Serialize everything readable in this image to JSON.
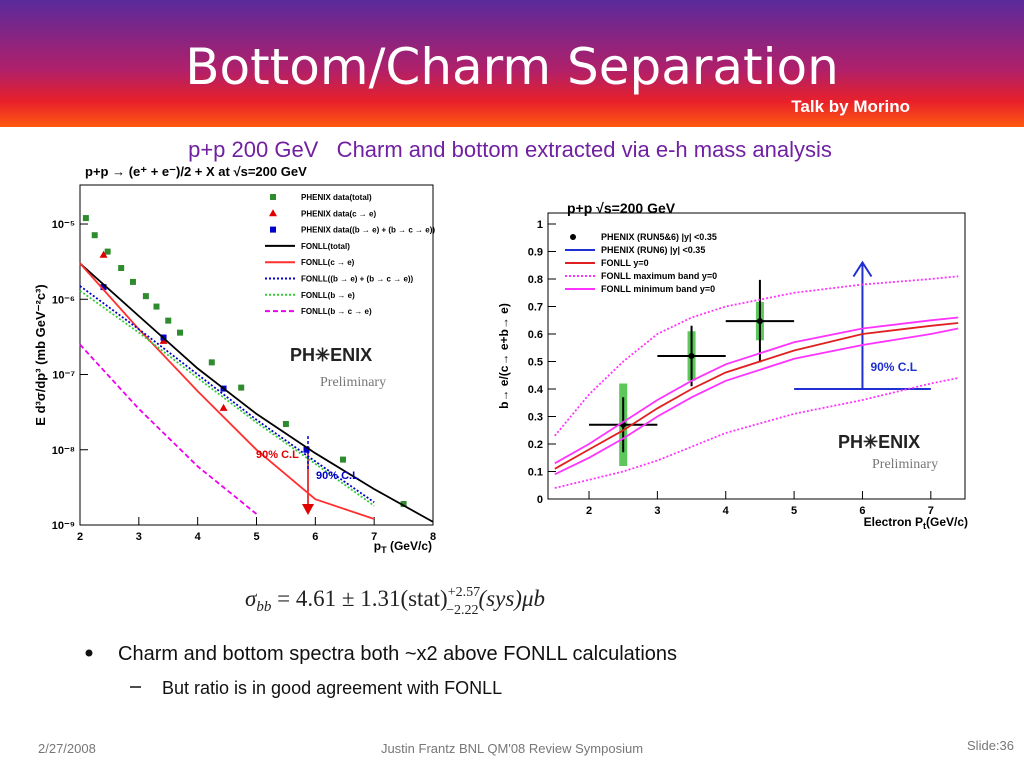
{
  "header": {
    "title": "Bottom/Charm Separation",
    "credit": "Talk by Morino"
  },
  "subtitle": "p+p 200 GeV   Charm and bottom extracted via e-h mass analysis",
  "chart_data": [
    {
      "type": "scatter",
      "title": "p+p → (e⁺ + e⁻)/2 + X at √s=200 GeV",
      "xlabel": "p",
      "xlabel_sub": "T",
      "xlabel_tail": " (GeV/c)",
      "ylabel": "E d³σ/dp³ (mb GeV⁻²c³)",
      "xlim": [
        2,
        8
      ],
      "xticks": [
        2,
        3,
        4,
        5,
        6,
        7,
        8
      ],
      "ylim": [
        1e-09,
        3.3e-05
      ],
      "log_y": true,
      "yticks": [
        {
          "value": 1e-09,
          "label": "10⁻⁹"
        },
        {
          "value": 1e-08,
          "label": "10⁻⁸"
        },
        {
          "value": 1e-07,
          "label": "10⁻⁷"
        },
        {
          "value": 1e-06,
          "label": "10⁻⁶"
        },
        {
          "value": 1e-05,
          "label": "10⁻⁵"
        }
      ],
      "legend": "top-right",
      "series": [
        {
          "name": "PHENIX data(total)",
          "mode": "markers",
          "marker": "square",
          "color": "#2e8b2e",
          "x": [
            2.1,
            2.25,
            2.47,
            2.7,
            2.9,
            3.12,
            3.3,
            3.5,
            3.7,
            4.24,
            4.74,
            5.5,
            6.47,
            7.5
          ],
          "values": [
            1.2e-05,
            7.1e-06,
            4.3e-06,
            2.6e-06,
            1.7e-06,
            1.1e-06,
            8e-07,
            5.2e-07,
            3.6e-07,
            1.45e-07,
            6.7e-08,
            2.2e-08,
            7.4e-09,
            1.9e-09
          ]
        },
        {
          "name": "PHENIX data(c → e)",
          "mode": "markers",
          "marker": "triangle",
          "color": "#e00000",
          "x": [
            2.4,
            3.42,
            4.44
          ],
          "values": [
            3.9e-06,
            2.8e-07,
            3.6e-08
          ]
        },
        {
          "name": "PHENIX data((b → e) + (b → c → e))",
          "mode": "markers",
          "marker": "square",
          "color": "#0000cc",
          "x": [
            2.4,
            3.42,
            4.44,
            5.85
          ],
          "values": [
            1.45e-06,
            3.1e-07,
            6.5e-08,
            1e-08
          ]
        },
        {
          "name": "FONLL(total)",
          "mode": "lines",
          "color": "#000000",
          "x": [
            2,
            3,
            4,
            5,
            6,
            7,
            8
          ],
          "values": [
            3e-06,
            6e-07,
            1.2e-07,
            3e-08,
            9e-09,
            3e-09,
            1.1e-09
          ]
        },
        {
          "name": "FONLL(c → e)",
          "mode": "lines",
          "color": "#ff3030",
          "x": [
            2,
            3,
            4,
            5,
            6,
            7,
            8
          ],
          "values": [
            3e-06,
            4e-07,
            6e-08,
            1e-08,
            2.2e-09,
            1.2e-09,
            null
          ]
        },
        {
          "name": "FONLL((b → e) + (b → c → e))",
          "mode": "lines",
          "dash": "dotted",
          "color": "#0000cc",
          "x": [
            2,
            3,
            4,
            5,
            6,
            7,
            8
          ],
          "values": [
            1.5e-06,
            4e-07,
            1e-07,
            2.5e-08,
            7e-09,
            2e-09,
            null
          ]
        },
        {
          "name": "FONLL(b → e)",
          "mode": "lines",
          "dash": "dotted",
          "color": "#33cc33",
          "x": [
            2,
            3,
            4,
            5,
            6,
            7,
            8
          ],
          "values": [
            1.3e-06,
            3.6e-07,
            9e-08,
            2.3e-08,
            6.5e-09,
            1.8e-09,
            null
          ]
        },
        {
          "name": "FONLL(b → c → e)",
          "mode": "lines",
          "dash": "dashed",
          "color": "#ee00ee",
          "x": [
            2,
            3,
            4,
            5,
            6,
            7,
            8
          ],
          "values": [
            2.5e-07,
            3.5e-08,
            6e-09,
            1.4e-09,
            null,
            null,
            null
          ]
        }
      ],
      "annotations": [
        {
          "text": "90% C.L",
          "color": "#e00000"
        },
        {
          "text": "90% C.L",
          "color": "#0000cc"
        },
        {
          "text": "PH✳ENIX",
          "color": "#222222"
        },
        {
          "text": "Preliminary",
          "color": "#777777"
        }
      ]
    },
    {
      "type": "scatter",
      "title": "p+p    √s=200 GeV",
      "xlabel": "Electron P",
      "xlabel_sub": "t",
      "xlabel_tail": "(GeV/c)",
      "ylabel": "b→ e/(c→ e+b→ e)",
      "xlim": [
        1.4,
        7.5
      ],
      "xticks": [
        2,
        3,
        4,
        5,
        6,
        7
      ],
      "ylim": [
        0,
        1.04
      ],
      "yticks": [
        0,
        0.1,
        0.2,
        0.3,
        0.4,
        0.5,
        0.6,
        0.7,
        0.8,
        0.9,
        1
      ],
      "legend": "top-left",
      "series": [
        {
          "name": "PHENIX (RUN5&6) |y| <0.35",
          "mode": "markers",
          "marker": "circle",
          "color": "#000000",
          "x": [
            2.5,
            3.5,
            4.5
          ],
          "values": [
            0.27,
            0.52,
            0.647
          ],
          "x_err": [
            0.5,
            0.5,
            0.5
          ],
          "y_err": [
            0.1,
            0.11,
            0.15
          ],
          "sys": [
            0.15,
            0.09,
            0.07
          ],
          "sys_color": "#5cc85c"
        },
        {
          "name": "PHENIX (RUN6) |y| <0.35",
          "mode": "limit",
          "color": "#1f2fd0",
          "x_range": [
            5,
            7
          ],
          "x_arrow": 6,
          "values": [
            0.4
          ],
          "arrow_to": [
            0.86
          ],
          "label": "90% C.L"
        },
        {
          "name": "FONLL y=0",
          "mode": "lines",
          "color": "#e02020",
          "x": [
            1.5,
            2,
            2.5,
            3,
            3.5,
            4,
            5,
            6,
            7,
            7.4
          ],
          "values": [
            0.11,
            0.18,
            0.25,
            0.33,
            0.4,
            0.46,
            0.54,
            0.6,
            0.63,
            0.64
          ]
        },
        {
          "name": "FONLL maximum band y=0",
          "mode": "band",
          "dash": "dotted",
          "color": "#ff33ff",
          "x": [
            1.5,
            2,
            2.5,
            3,
            3.5,
            4,
            5,
            6,
            7,
            7.4
          ],
          "lower": [
            0.04,
            0.07,
            0.1,
            0.14,
            0.19,
            0.24,
            0.31,
            0.36,
            0.42,
            0.44
          ],
          "upper": [
            0.23,
            0.38,
            0.5,
            0.6,
            0.66,
            0.7,
            0.75,
            0.78,
            0.8,
            0.81
          ]
        },
        {
          "name": "FONLL minimum band y=0",
          "mode": "band",
          "color": "#ff33ff",
          "x": [
            1.5,
            2,
            2.5,
            3,
            3.5,
            4,
            5,
            6,
            7,
            7.4
          ],
          "lower": [
            0.09,
            0.15,
            0.22,
            0.3,
            0.37,
            0.43,
            0.51,
            0.56,
            0.6,
            0.62
          ],
          "upper": [
            0.13,
            0.2,
            0.28,
            0.36,
            0.43,
            0.49,
            0.57,
            0.62,
            0.65,
            0.66
          ]
        }
      ],
      "annotations": [
        {
          "text": "PH✳ENIX",
          "color": "#222222"
        },
        {
          "text": "Preliminary",
          "color": "#777777"
        }
      ]
    }
  ],
  "equation": {
    "lhs": "σ",
    "lhs_sub": "bb",
    "main": " = 4.61 ± 1.31(stat)",
    "sup": "+2.57",
    "sub": "−2.22",
    "tail": "(sys)μb"
  },
  "bullets": [
    {
      "text": "Charm and bottom spectra both ~x2 above FONLL calculations",
      "sub": [
        "But ratio is in good agreement with FONLL"
      ]
    }
  ],
  "footer": {
    "date": "2/27/2008",
    "center": "Justin Frantz BNL QM'08 Review Symposium",
    "slide": "Slide:36"
  }
}
